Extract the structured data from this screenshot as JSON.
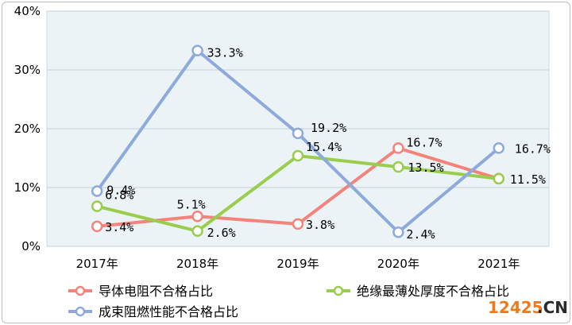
{
  "chart_data": {
    "type": "line",
    "categories": [
      "2017年",
      "2018年",
      "2019年",
      "2020年",
      "2021年"
    ],
    "ylim": [
      0,
      40
    ],
    "yticks": [
      0,
      10,
      20,
      30,
      40
    ],
    "ytick_labels": [
      "0%",
      "10%",
      "20%",
      "30%",
      "40%"
    ],
    "grid": true,
    "legend_position": "bottom",
    "series": [
      {
        "name": "导体电阻不合格占比",
        "color": "#f4847b",
        "values": [
          3.4,
          5.1,
          3.8,
          16.7,
          11.5
        ],
        "labels": [
          "3.4%",
          "5.1%",
          "3.8%",
          "16.7%",
          ""
        ]
      },
      {
        "name": "绝缘最薄处厚度不合格占比",
        "color": "#9acd4c",
        "values": [
          6.8,
          2.6,
          15.4,
          13.5,
          11.5
        ],
        "labels": [
          "6.8%",
          "2.6%",
          "15.4%",
          "13.5%",
          "11.5%"
        ]
      },
      {
        "name": "成束阻燃性能不合格占比",
        "color": "#8eaadb",
        "values": [
          9.4,
          33.3,
          19.2,
          2.4,
          16.7
        ],
        "labels": [
          "9.4%",
          "33.3%",
          "19.2%",
          "2.4%",
          "16.7%"
        ]
      }
    ]
  },
  "watermark": {
    "number": "12425",
    "domain": ".CN"
  }
}
